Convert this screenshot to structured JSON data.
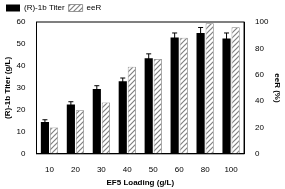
{
  "chart_data": {
    "type": "bar",
    "categories": [
      "10",
      "20",
      "30",
      "40",
      "50",
      "60",
      "80",
      "100"
    ],
    "x_label": "EF5 Loading (g/L)",
    "y_label": "(R)-1b Titer (g/L)",
    "y2_label": "eeR (%)",
    "series": [
      {
        "name": "(R)-1b Titer",
        "color": "#000000",
        "values": [
          14.5,
          22.5,
          29.5,
          33,
          43.5,
          53,
          55,
          52.5
        ],
        "errors": [
          1,
          1.2,
          1.5,
          1.5,
          2,
          2,
          2.5,
          2.5
        ]
      },
      {
        "name": "eeR",
        "color": "#808080",
        "axis": "y2",
        "values": [
          20,
          33,
          39,
          66,
          72,
          88,
          99,
          96
        ]
      }
    ],
    "ylim": [
      0,
      60
    ],
    "yticks": [
      0,
      10,
      20,
      30,
      40,
      50,
      60
    ],
    "y2lim": [
      0,
      100
    ],
    "y2ticks": [
      0,
      20,
      40,
      60,
      80,
      100
    ],
    "legend": "upper left",
    "grid": false
  }
}
